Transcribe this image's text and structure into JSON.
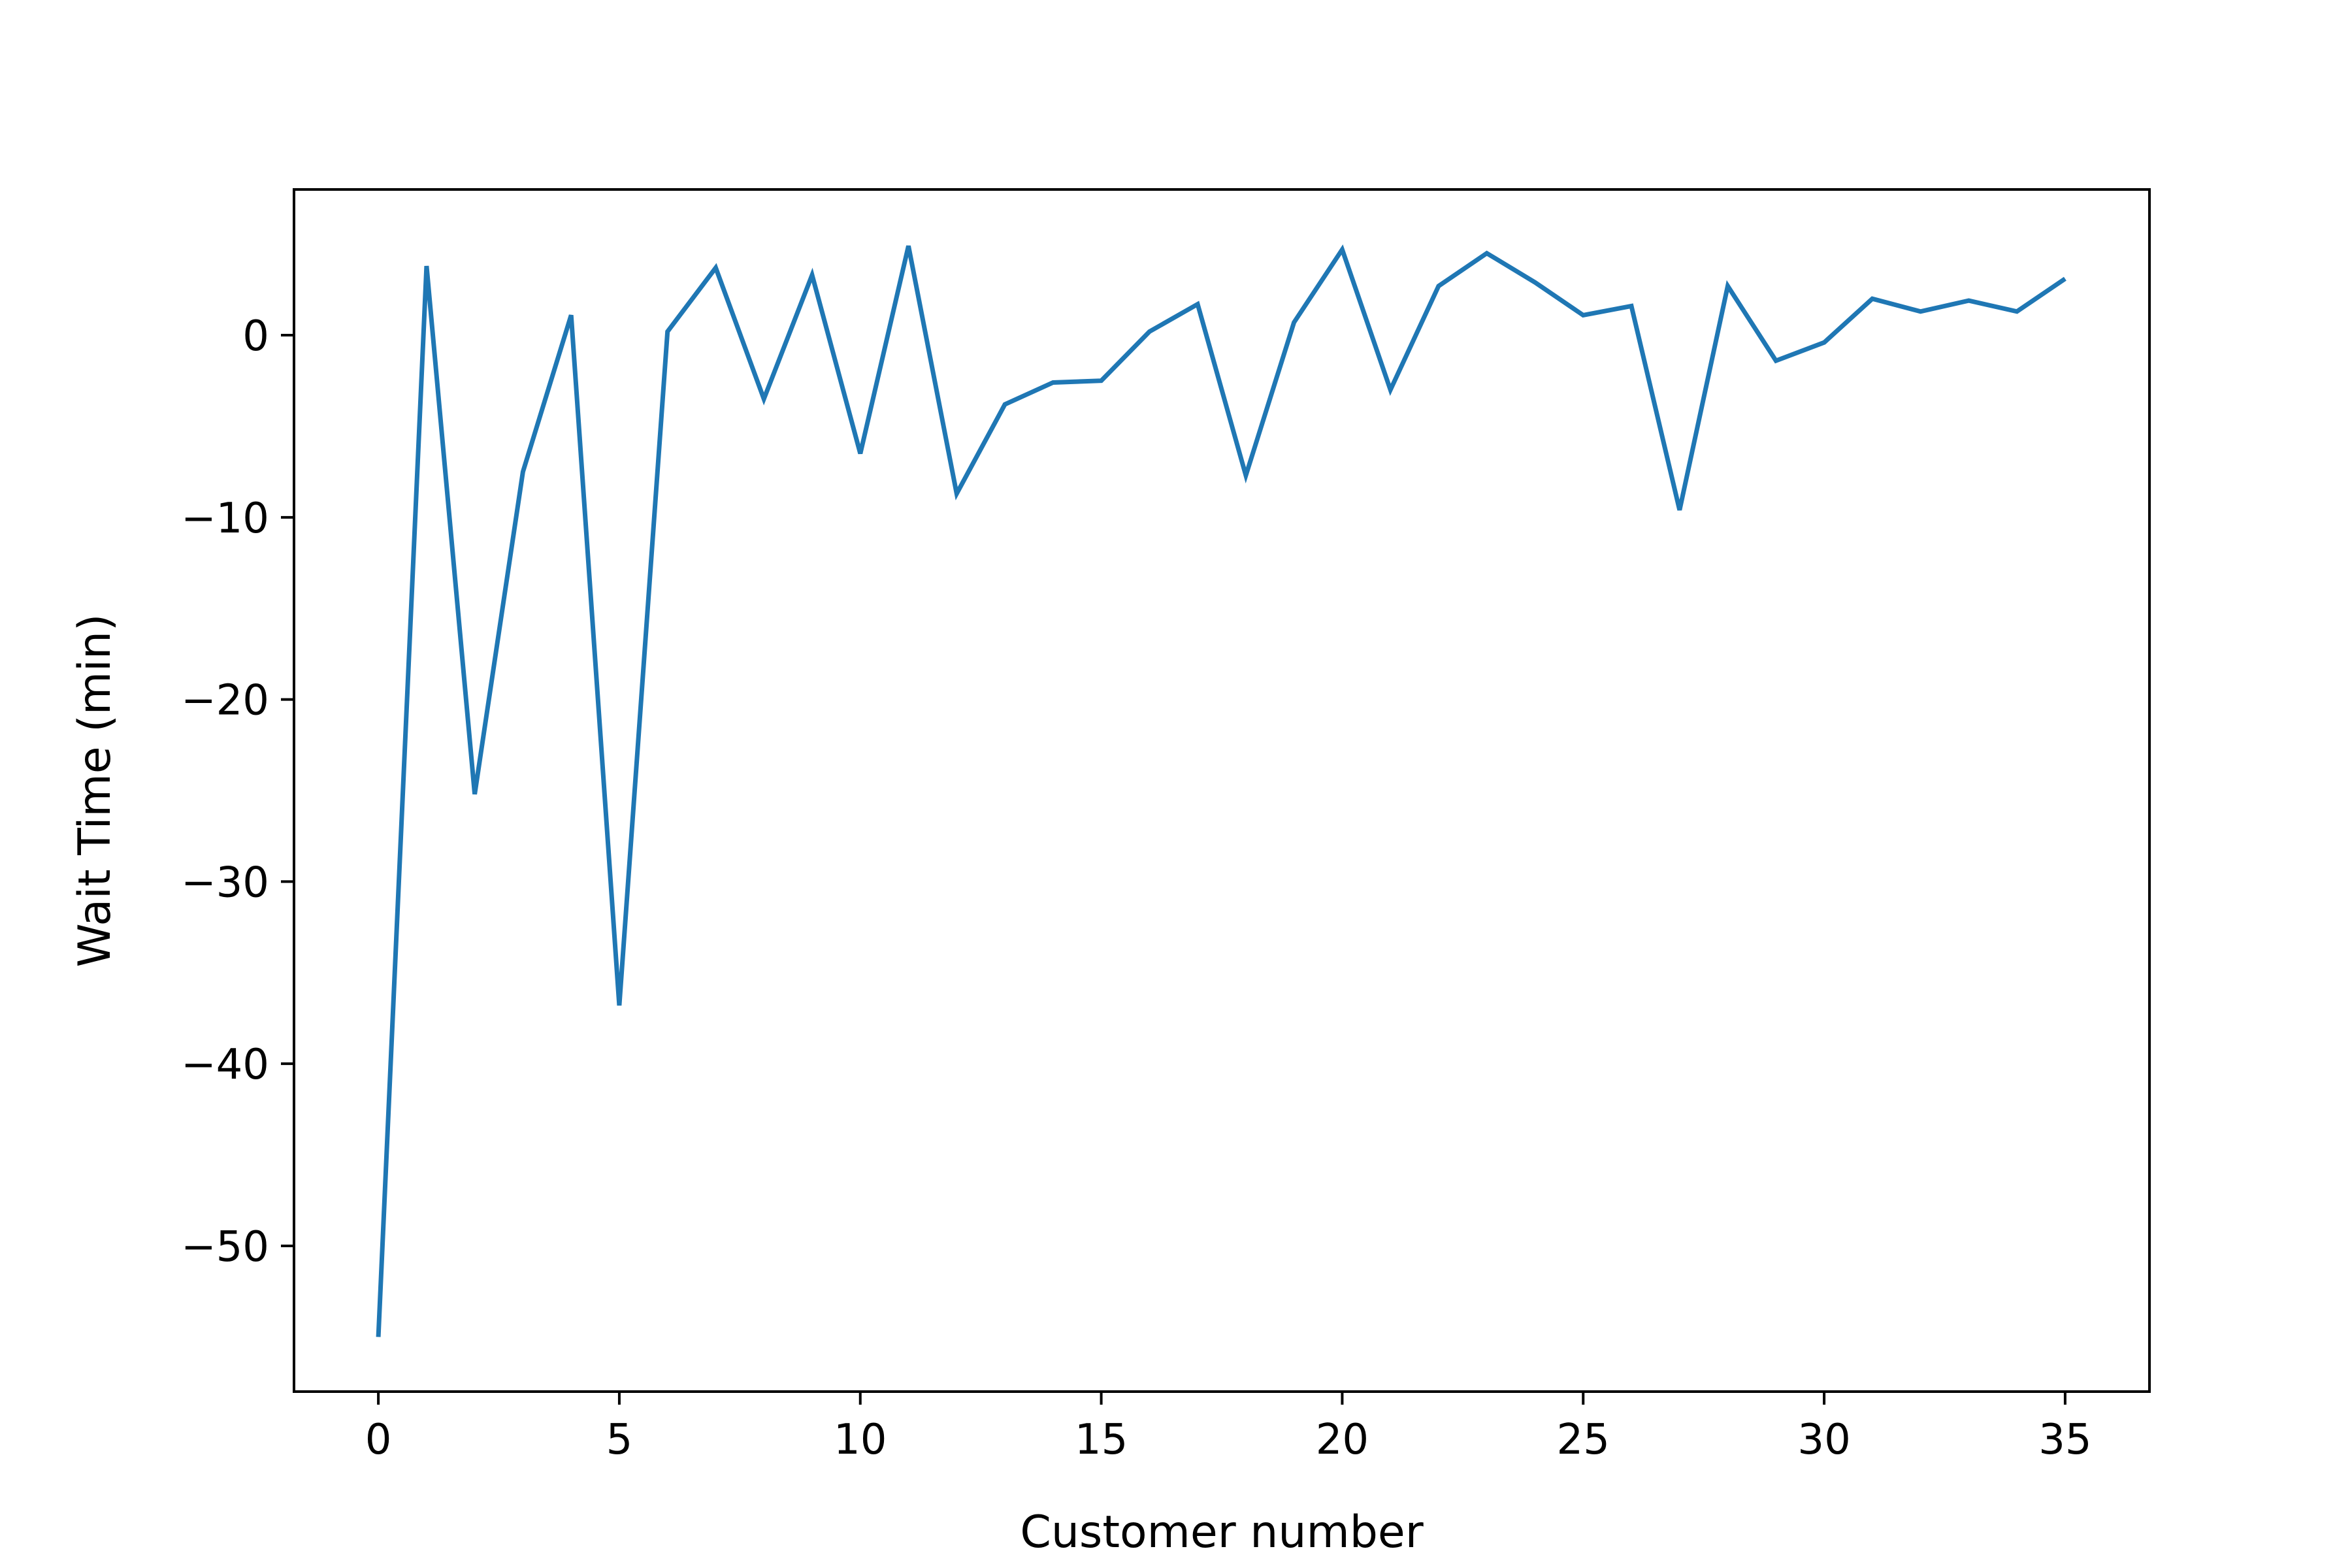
{
  "chart_data": {
    "type": "line",
    "title": "",
    "xlabel": "Customer number",
    "ylabel": "Wait Time (min)",
    "xlim": [
      -1.75,
      36.75
    ],
    "ylim": [
      -58,
      8
    ],
    "xticks": [
      0,
      5,
      10,
      15,
      20,
      25,
      30,
      35
    ],
    "xtick_labels": [
      "0",
      "5",
      "10",
      "15",
      "20",
      "25",
      "30",
      "35"
    ],
    "yticks": [
      0,
      -10,
      -20,
      -30,
      -40,
      -50
    ],
    "ytick_labels": [
      "0",
      "−10",
      "−20",
      "−30",
      "−40",
      "−50"
    ],
    "grid": false,
    "legend": "none",
    "series": [
      {
        "color": "#1f77b4",
        "x": [
          0,
          1,
          2,
          3,
          4,
          5,
          6,
          7,
          8,
          9,
          10,
          11,
          12,
          13,
          14,
          15,
          16,
          17,
          18,
          19,
          20,
          21,
          22,
          23,
          24,
          25,
          26,
          27,
          28,
          29,
          30,
          31,
          32,
          33,
          34,
          35
        ],
        "values": [
          -55.0,
          3.8,
          -25.2,
          -7.5,
          1.1,
          -36.8,
          0.2,
          3.7,
          -3.5,
          3.3,
          -6.5,
          4.9,
          -8.7,
          -3.8,
          -2.6,
          -2.5,
          0.2,
          1.7,
          -7.7,
          0.7,
          4.7,
          -3.0,
          2.7,
          4.5,
          2.9,
          1.1,
          1.6,
          -9.6,
          2.7,
          -1.4,
          -0.4,
          2.0,
          1.3,
          1.9,
          1.3,
          3.1
        ]
      }
    ]
  }
}
